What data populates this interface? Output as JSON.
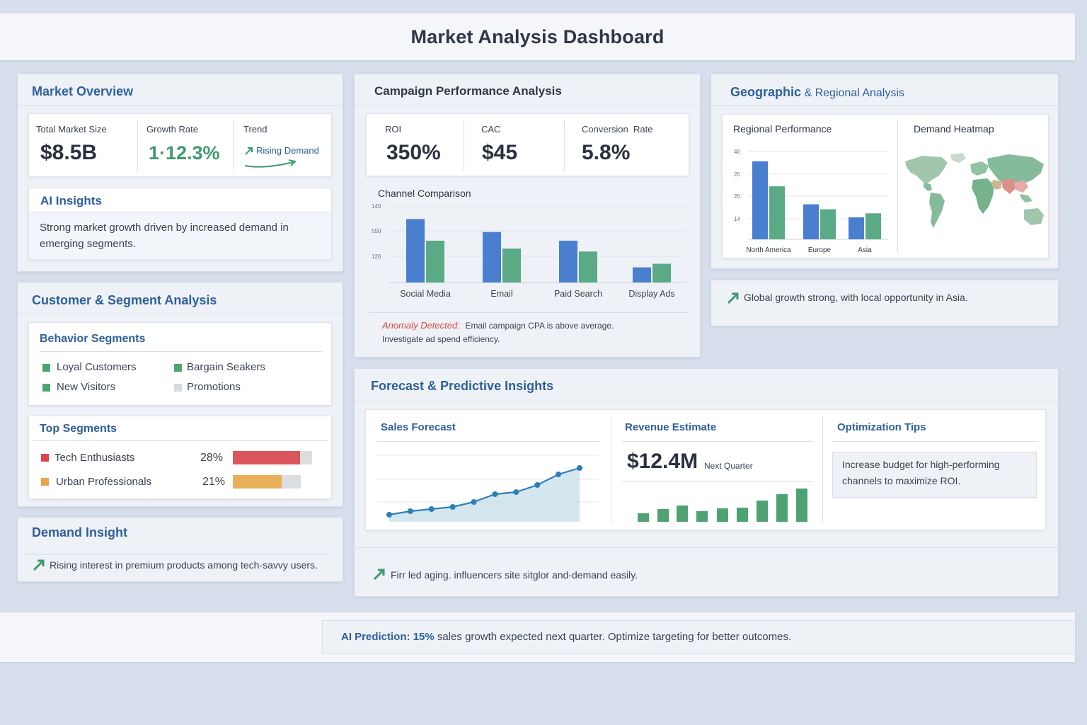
{
  "header": {
    "title": "Market Analysis Dashboard"
  },
  "colors": {
    "blue": "#4a7fd0",
    "green": "#5aaa86",
    "red": "#d9575c",
    "orange": "#e9b05a",
    "accent_text": "#2f5f9c"
  },
  "market_overview": {
    "title": "Market Overview",
    "kpis": [
      {
        "label": "Total Market Size",
        "value": "$8.5B"
      },
      {
        "label": "Growth Rate",
        "value": "1·12.3%"
      },
      {
        "label": "Trend",
        "value": "Rising Demand",
        "icon": "trend-up-arrow-icon"
      }
    ],
    "ai_insights": {
      "title": "AI Insights",
      "text": "Strong market growth driven by increased demand in emerging segments."
    }
  },
  "customer_segment": {
    "title": "Customer & Segment Analysis",
    "behavior": {
      "title": "Behavior Segments",
      "items": [
        {
          "label": "Loyal Customers",
          "color": "#4fa372"
        },
        {
          "label": "Bargain Seakers",
          "color": "#4fa372"
        },
        {
          "label": "New Visitors",
          "color": "#4fa372"
        },
        {
          "label": "Promotions",
          "color": "#d6d9de"
        }
      ]
    },
    "top_segments": {
      "title": "Top Segments",
      "items": [
        {
          "label": "Tech Enthusiasts",
          "percent": "28%",
          "fill": 0.85,
          "color": "#d9575c"
        },
        {
          "label": "Urban Professionals",
          "percent": "21%",
          "fill": 0.72,
          "color": "#e9b05a"
        }
      ]
    }
  },
  "demand_insight": {
    "title": "Demand Insight",
    "text": "Rising interest in premium products among tech-savvy users."
  },
  "campaign": {
    "title": "Campaign Performance Analysis",
    "kpis": [
      {
        "label": "ROI",
        "value": "350%"
      },
      {
        "label": "CAC",
        "value": "$45"
      },
      {
        "label": "Conversion  Rate",
        "value": "5.8%"
      }
    ],
    "chart_title": "Channel Comparison",
    "anomaly_label": "Anomaly Detected:",
    "anomaly_text": "Email campaign CPA is above average.",
    "anomaly_text2": "Investigate ad spend efficiency."
  },
  "geo": {
    "title_bold": "Geographic",
    "title_rest": "& Regional Analysis",
    "regional_title": "Regional Performance",
    "heatmap_title": "Demand Heatmap",
    "insight": "Global growth strong, with local opportunity in Asia."
  },
  "forecast": {
    "title": "Forecast & Predictive Insights",
    "sales_title": "Sales Forecast",
    "revenue_title": "Revenue Estimate",
    "revenue_value": "$12.4M",
    "revenue_note": "Next Quarter",
    "tips_title": "Optimization Tips",
    "tips_text": "Increase budget for high-performing channels to maximize ROI.",
    "footer_text": "Firr led aging. influencers site sitglor and-demand easily."
  },
  "prediction": {
    "label": "AI Prediction:",
    "value": "15%",
    "text": "sales growth expected next quarter. Optimize targeting for better outcomes."
  },
  "chart_data": [
    {
      "type": "bar",
      "title": "Channel Comparison",
      "categories": [
        "Social Media",
        "Email",
        "Paid Search",
        "Display Ads"
      ],
      "y_tick_labels": [
        "140",
        "550",
        "120"
      ],
      "series": [
        {
          "values": [
            88,
            70,
            58,
            21
          ]
        },
        {
          "values": [
            58,
            47,
            43,
            26
          ]
        }
      ],
      "ylim": [
        0,
        110
      ]
    },
    {
      "type": "bar",
      "title": "Regional Performance",
      "categories": [
        "North America",
        "Europe",
        "Asia"
      ],
      "y_tick_labels": [
        "40",
        "20",
        "20",
        "14"
      ],
      "series": [
        {
          "values": [
            39,
            17.5,
            11
          ]
        },
        {
          "values": [
            26.5,
            15,
            13
          ]
        }
      ],
      "ylim": [
        0,
        46
      ]
    },
    {
      "type": "line",
      "title": "Sales Forecast",
      "x": [
        1,
        2,
        3,
        4,
        5,
        6,
        7,
        8,
        9,
        10
      ],
      "values": [
        10,
        15,
        18,
        21,
        28,
        39,
        42,
        52,
        67,
        76
      ],
      "ylim": [
        0,
        100
      ]
    },
    {
      "type": "bar",
      "title": "Revenue Estimate",
      "categories": [
        "1",
        "2",
        "3",
        "4",
        "5",
        "6",
        "7",
        "8",
        "9"
      ],
      "values": [
        12,
        18,
        23,
        15,
        19,
        20,
        30,
        39,
        47
      ],
      "ylim": [
        0,
        100
      ]
    }
  ]
}
